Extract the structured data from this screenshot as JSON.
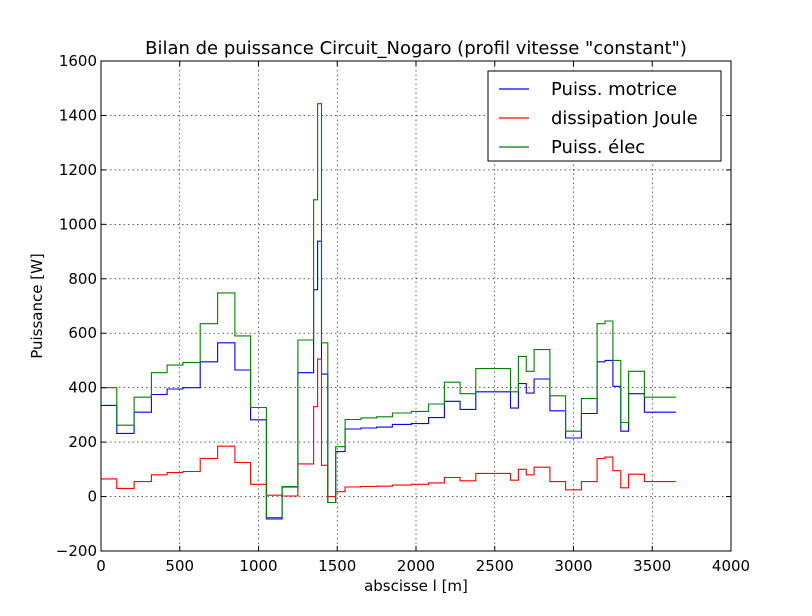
{
  "chart_data": {
    "type": "line",
    "title": "Bilan de puissance Circuit_Nogaro  (profil vitesse \"constant\")",
    "xlabel": "abscisse l [m]",
    "ylabel": "Puissance [W]",
    "xlim": [
      0,
      4000
    ],
    "ylim": [
      -200,
      1600
    ],
    "xticks": [
      0,
      500,
      1000,
      1500,
      2000,
      2500,
      3000,
      3500,
      4000
    ],
    "yticks": [
      -200,
      0,
      200,
      400,
      600,
      800,
      1000,
      1200,
      1400,
      1600
    ],
    "xtick_labels": [
      "0",
      "500",
      "1000",
      "1500",
      "2000",
      "2500",
      "3000",
      "3500",
      "4000"
    ],
    "ytick_labels": [
      "−200",
      "0",
      "200",
      "400",
      "600",
      "800",
      "1000",
      "1200",
      "1400",
      "1600"
    ],
    "grid": true,
    "legend_position": "top-right",
    "step_style": "steps-pre",
    "series": [
      {
        "name": "Puiss. motrice",
        "color": "#0000ff",
        "x": [
          0,
          100,
          210,
          320,
          420,
          520,
          630,
          740,
          850,
          950,
          1050,
          1150,
          1250,
          1350,
          1375,
          1400,
          1440,
          1490,
          1550,
          1650,
          1750,
          1850,
          1970,
          2080,
          2180,
          2280,
          2380,
          2490,
          2600,
          2650,
          2700,
          2750,
          2850,
          2950,
          3050,
          3150,
          3200,
          3250,
          3300,
          3350,
          3450,
          3550,
          3650
        ],
        "y": [
          335,
          335,
          232,
          310,
          375,
          395,
          400,
          495,
          565,
          465,
          282,
          -82,
          35,
          455,
          760,
          938,
          450,
          -22,
          165,
          248,
          252,
          255,
          265,
          268,
          290,
          350,
          320,
          385,
          385,
          325,
          415,
          380,
          432,
          315,
          215,
          305,
          495,
          500,
          405,
          240,
          378,
          310,
          310
        ]
      },
      {
        "name": "dissipation Joule",
        "color": "#ff0000",
        "x": [
          0,
          100,
          210,
          320,
          420,
          520,
          630,
          740,
          850,
          950,
          1050,
          1150,
          1250,
          1350,
          1375,
          1400,
          1440,
          1490,
          1550,
          1650,
          1750,
          1850,
          1970,
          2080,
          2180,
          2280,
          2380,
          2490,
          2600,
          2650,
          2700,
          2750,
          2850,
          2950,
          3050,
          3150,
          3200,
          3250,
          3300,
          3350,
          3450,
          3550,
          3650
        ],
        "y": [
          65,
          65,
          30,
          55,
          80,
          88,
          92,
          140,
          185,
          125,
          45,
          5,
          2,
          120,
          330,
          505,
          115,
          0,
          18,
          35,
          37,
          38,
          42,
          45,
          50,
          70,
          58,
          85,
          85,
          60,
          100,
          80,
          108,
          55,
          25,
          55,
          140,
          145,
          95,
          32,
          82,
          55,
          55
        ]
      },
      {
        "name": "Puiss. élec",
        "color": "#008000",
        "x": [
          0,
          100,
          210,
          320,
          420,
          520,
          630,
          740,
          850,
          950,
          1050,
          1150,
          1250,
          1350,
          1375,
          1400,
          1440,
          1490,
          1550,
          1650,
          1750,
          1850,
          1970,
          2080,
          2180,
          2280,
          2380,
          2490,
          2600,
          2650,
          2700,
          2750,
          2850,
          2950,
          3050,
          3150,
          3200,
          3250,
          3300,
          3350,
          3450,
          3550,
          3650
        ],
        "y": [
          400,
          400,
          262,
          365,
          455,
          483,
          492,
          635,
          748,
          590,
          327,
          -77,
          37,
          575,
          1090,
          1443,
          565,
          -22,
          183,
          283,
          289,
          293,
          307,
          313,
          340,
          420,
          378,
          470,
          470,
          385,
          515,
          460,
          540,
          370,
          240,
          360,
          635,
          645,
          500,
          272,
          460,
          365,
          365
        ]
      }
    ]
  }
}
